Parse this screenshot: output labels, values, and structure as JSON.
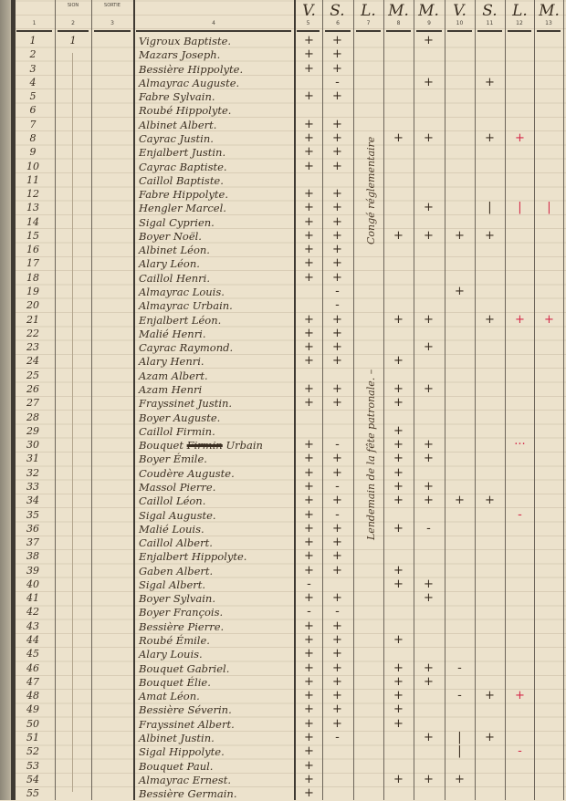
{
  "header": {
    "col_numbers": [
      "1",
      "2",
      "3",
      "4",
      "5",
      "6",
      "7",
      "8",
      "9",
      "10",
      "11",
      "12",
      "13"
    ],
    "col2_label": "SION",
    "col3_label": "SORTIE",
    "day_letters": [
      "V.",
      "S.",
      "L.",
      "M.",
      "M.",
      "V.",
      "S.",
      "L.",
      "M."
    ]
  },
  "annotations": {
    "col7_upper": "Congé réglementaire",
    "col7_lower": "Lendemain de la fête patronale. –"
  },
  "colors": {
    "ink": "#3b2f22",
    "red_ink": "#d42a4a",
    "paper": "#ece2cc"
  },
  "rows": [
    {
      "num": "1",
      "adm": "1",
      "name": "Vigroux Baptiste.",
      "marks": [
        "+",
        "+",
        "",
        "",
        "+",
        "",
        "",
        "",
        ""
      ],
      "red": []
    },
    {
      "num": "2",
      "name": "Mazars Joseph.",
      "marks": [
        "+",
        "+",
        "",
        "",
        "",
        "",
        "",
        "",
        ""
      ],
      "red": []
    },
    {
      "num": "3",
      "name": "Bessière Hippolyte.",
      "marks": [
        "+",
        "+",
        "",
        "",
        "",
        "",
        "",
        "",
        ""
      ],
      "red": []
    },
    {
      "num": "4",
      "name": "Almayrac Auguste.",
      "marks": [
        "",
        "-",
        "",
        "",
        "+",
        "",
        "+",
        "",
        ""
      ],
      "red": []
    },
    {
      "num": "5",
      "name": "Fabre Sylvain.",
      "marks": [
        "+",
        "+",
        "",
        "",
        "",
        "",
        "",
        "",
        ""
      ],
      "red": []
    },
    {
      "num": "6",
      "name": "Roubé Hippolyte.",
      "marks": [
        "",
        "",
        "",
        "",
        "",
        "",
        "",
        "",
        ""
      ],
      "red": []
    },
    {
      "num": "7",
      "name": "Albinet Albert.",
      "marks": [
        "+",
        "+",
        "",
        "",
        "",
        "",
        "",
        "",
        ""
      ],
      "red": []
    },
    {
      "num": "8",
      "name": "Cayrac Justin.",
      "marks": [
        "+",
        "+",
        "",
        "+",
        "+",
        "",
        "+",
        "+",
        ""
      ],
      "red": [
        12
      ]
    },
    {
      "num": "9",
      "name": "Enjalbert Justin.",
      "marks": [
        "+",
        "+",
        "",
        "",
        "",
        "",
        "",
        "",
        ""
      ],
      "red": []
    },
    {
      "num": "10",
      "name": "Cayrac Baptiste.",
      "marks": [
        "+",
        "+",
        "",
        "",
        "",
        "",
        "",
        "",
        ""
      ],
      "red": []
    },
    {
      "num": "11",
      "name": "Caillol Baptiste.",
      "marks": [
        "",
        "",
        "",
        "",
        "",
        "",
        "",
        "",
        ""
      ],
      "red": []
    },
    {
      "num": "12",
      "name": "Fabre Hippolyte.",
      "marks": [
        "+",
        "+",
        "",
        "",
        "",
        "",
        "",
        "",
        ""
      ],
      "red": []
    },
    {
      "num": "13",
      "name": "Hengler Marcel.",
      "marks": [
        "+",
        "+",
        "",
        "",
        "+",
        "",
        "|",
        "|",
        "|"
      ],
      "red": [
        12,
        13
      ]
    },
    {
      "num": "14",
      "name": "Sigal Cyprien.",
      "marks": [
        "+",
        "+",
        "",
        "",
        "",
        "",
        "",
        "",
        ""
      ],
      "red": []
    },
    {
      "num": "15",
      "name": "Boyer Noël.",
      "marks": [
        "+",
        "+",
        "",
        "+",
        "+",
        "+",
        "+",
        "",
        ""
      ],
      "red": []
    },
    {
      "num": "16",
      "name": "Albinet Léon.",
      "marks": [
        "+",
        "+",
        "",
        "",
        "",
        "",
        "",
        "",
        ""
      ],
      "red": []
    },
    {
      "num": "17",
      "name": "Alary Léon.",
      "marks": [
        "+",
        "+",
        "",
        "",
        "",
        "",
        "",
        "",
        ""
      ],
      "red": []
    },
    {
      "num": "18",
      "name": "Caillol Henri.",
      "marks": [
        "+",
        "+",
        "",
        "",
        "",
        "",
        "",
        "",
        ""
      ],
      "red": []
    },
    {
      "num": "19",
      "name": "Almayrac Louis.",
      "marks": [
        "",
        "-",
        "",
        "",
        "",
        "+",
        "",
        "",
        ""
      ],
      "red": []
    },
    {
      "num": "20",
      "name": "Almayrac Urbain.",
      "marks": [
        "",
        "-",
        "",
        "",
        "",
        "",
        "",
        "",
        ""
      ],
      "red": []
    },
    {
      "num": "21",
      "name": "Enjalbert Léon.",
      "marks": [
        "+",
        "+",
        "",
        "+",
        "+",
        "",
        "+",
        "+",
        "+"
      ],
      "red": [
        12,
        13
      ]
    },
    {
      "num": "22",
      "name": "Malié Henri.",
      "marks": [
        "+",
        "+",
        "",
        "",
        "",
        "",
        "",
        "",
        ""
      ],
      "red": []
    },
    {
      "num": "23",
      "name": "Cayrac Raymond.",
      "marks": [
        "+",
        "+",
        "",
        "",
        "+",
        "",
        "",
        "",
        ""
      ],
      "red": []
    },
    {
      "num": "24",
      "name": "Alary Henri.",
      "marks": [
        "+",
        "+",
        "",
        "+",
        "",
        "",
        "",
        "",
        ""
      ],
      "red": []
    },
    {
      "num": "25",
      "name": "Azam Albert.",
      "marks": [
        "",
        "",
        "",
        "",
        "",
        "",
        "",
        "",
        ""
      ],
      "red": []
    },
    {
      "num": "26",
      "name": "Azam Henri",
      "marks": [
        "+",
        "+",
        "",
        "+",
        "+",
        "",
        "",
        "",
        ""
      ],
      "red": []
    },
    {
      "num": "27",
      "name": "Frayssinet Justin.",
      "marks": [
        "+",
        "+",
        "",
        "+",
        "",
        "",
        "",
        "",
        ""
      ],
      "red": []
    },
    {
      "num": "28",
      "name": "Boyer Auguste.",
      "marks": [
        "",
        "",
        "",
        "",
        "",
        "",
        "",
        "",
        ""
      ],
      "red": []
    },
    {
      "num": "29",
      "name": "Caillol Firmin.",
      "marks": [
        "",
        "",
        "",
        "+",
        "",
        "",
        "",
        "",
        ""
      ],
      "red": []
    },
    {
      "num": "30",
      "name": "Bouquet",
      "name_struck": "Firmin",
      "name_added": "Urbain",
      "marks": [
        "+",
        "-",
        "",
        "+",
        "+",
        "",
        "",
        "···",
        ""
      ],
      "red": [
        12
      ]
    },
    {
      "num": "31",
      "name": "Boyer Émile.",
      "marks": [
        "+",
        "+",
        "",
        "+",
        "+",
        "",
        "",
        "",
        ""
      ],
      "red": []
    },
    {
      "num": "32",
      "name": "Coudère Auguste.",
      "marks": [
        "+",
        "+",
        "",
        "+",
        "",
        "",
        "",
        "",
        ""
      ],
      "red": []
    },
    {
      "num": "33",
      "name": "Massol Pierre.",
      "marks": [
        "+",
        "-",
        "",
        "+",
        "+",
        "",
        "",
        "",
        ""
      ],
      "red": []
    },
    {
      "num": "34",
      "name": "Caillol Léon.",
      "marks": [
        "+",
        "+",
        "",
        "+",
        "+",
        "+",
        "+",
        "",
        ""
      ],
      "red": []
    },
    {
      "num": "35",
      "name": "Sigal Auguste.",
      "marks": [
        "+",
        "-",
        "",
        "",
        "",
        "",
        "",
        "-",
        ""
      ],
      "red": [
        12
      ]
    },
    {
      "num": "36",
      "name": "Malié Louis.",
      "marks": [
        "+",
        "+",
        "",
        "+",
        "-",
        "",
        "",
        "",
        ""
      ],
      "red": []
    },
    {
      "num": "37",
      "name": "Caillol Albert.",
      "marks": [
        "+",
        "+",
        "",
        "",
        "",
        "",
        "",
        "",
        ""
      ],
      "red": []
    },
    {
      "num": "38",
      "name": "Enjalbert Hippolyte.",
      "marks": [
        "+",
        "+",
        "",
        "",
        "",
        "",
        "",
        "",
        ""
      ],
      "red": []
    },
    {
      "num": "39",
      "name": "Gaben Albert.",
      "marks": [
        "+",
        "+",
        "",
        "+",
        "",
        "",
        "",
        "",
        ""
      ],
      "red": []
    },
    {
      "num": "40",
      "name": "Sigal Albert.",
      "marks": [
        "-",
        "",
        "",
        "+",
        "+",
        "",
        "",
        "",
        ""
      ],
      "red": []
    },
    {
      "num": "41",
      "name": "Boyer Sylvain.",
      "marks": [
        "+",
        "+",
        "",
        "",
        "+",
        "",
        "",
        "",
        ""
      ],
      "red": []
    },
    {
      "num": "42",
      "name": "Boyer François.",
      "marks": [
        "-",
        "-",
        "",
        "",
        "",
        "",
        "",
        "",
        ""
      ],
      "red": []
    },
    {
      "num": "43",
      "name": "Bessière Pierre.",
      "marks": [
        "+",
        "+",
        "",
        "",
        "",
        "",
        "",
        "",
        ""
      ],
      "red": []
    },
    {
      "num": "44",
      "name": "Roubé Émile.",
      "marks": [
        "+",
        "+",
        "",
        "+",
        "",
        "",
        "",
        "",
        ""
      ],
      "red": []
    },
    {
      "num": "45",
      "name": "Alary Louis.",
      "marks": [
        "+",
        "+",
        "",
        "",
        "",
        "",
        "",
        "",
        ""
      ],
      "red": []
    },
    {
      "num": "46",
      "name": "Bouquet Gabriel.",
      "marks": [
        "+",
        "+",
        "",
        "+",
        "+",
        "-",
        "",
        "",
        ""
      ],
      "red": []
    },
    {
      "num": "47",
      "name": "Bouquet Élie.",
      "marks": [
        "+",
        "+",
        "",
        "+",
        "+",
        "",
        "",
        "",
        ""
      ],
      "red": []
    },
    {
      "num": "48",
      "name": "Amat Léon.",
      "marks": [
        "+",
        "+",
        "",
        "+",
        "",
        "-",
        "+",
        "+",
        ""
      ],
      "red": [
        12
      ]
    },
    {
      "num": "49",
      "name": "Bessière Séverin.",
      "marks": [
        "+",
        "+",
        "",
        "+",
        "",
        "",
        "",
        "",
        ""
      ],
      "red": []
    },
    {
      "num": "50",
      "name": "Frayssinet Albert.",
      "marks": [
        "+",
        "+",
        "",
        "+",
        "",
        "",
        "",
        "",
        ""
      ],
      "red": []
    },
    {
      "num": "51",
      "name": "Albinet Justin.",
      "marks": [
        "+",
        "-",
        "",
        "",
        "+",
        "|",
        "+",
        "",
        ""
      ],
      "red": []
    },
    {
      "num": "52",
      "name": "Sigal Hippolyte.",
      "marks": [
        "+",
        "",
        "",
        "",
        "",
        "|",
        "",
        "-",
        ""
      ],
      "red": [
        12
      ]
    },
    {
      "num": "53",
      "name": "Bouquet Paul.",
      "marks": [
        "+",
        "",
        "",
        "",
        "",
        "",
        "",
        "",
        ""
      ],
      "red": []
    },
    {
      "num": "54",
      "name": "Almayrac Ernest.",
      "marks": [
        "+",
        "",
        "",
        "+",
        "+",
        "+",
        "",
        "",
        ""
      ],
      "red": []
    },
    {
      "num": "55",
      "name": "Bessière Germain.",
      "marks": [
        "+",
        "",
        "",
        "",
        "",
        "",
        "",
        "",
        ""
      ],
      "red": []
    }
  ]
}
